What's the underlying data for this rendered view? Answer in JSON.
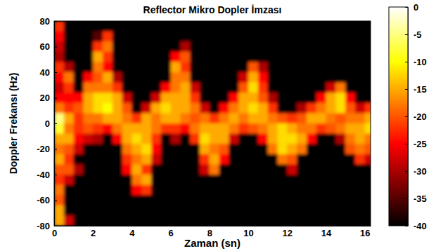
{
  "chart_data": {
    "type": "heatmap",
    "title": "Reflector Mikro Dopler İmzası",
    "x_label": "Zaman (sn)",
    "y_label": "Doppler Frekansı (Hz)",
    "xlim": [
      0,
      16.3
    ],
    "xticks": [
      0,
      2,
      4,
      6,
      8,
      10,
      12,
      14,
      16
    ],
    "ylim": [
      -80,
      80
    ],
    "yticks": [
      -80,
      -60,
      -40,
      -20,
      0,
      20,
      40,
      60,
      80
    ],
    "x": [
      0.25,
      0.75,
      1.25,
      1.75,
      2.25,
      2.75,
      3.25,
      3.75,
      4.25,
      4.75,
      5.25,
      5.75,
      6.25,
      6.75,
      7.25,
      7.75,
      8.25,
      8.75,
      9.25,
      9.75,
      10.25,
      10.75,
      11.25,
      11.75,
      12.25,
      12.75,
      13.25,
      13.75,
      14.25,
      14.75,
      15.25,
      15.75,
      16.25
    ],
    "y": [
      76,
      68,
      60,
      52,
      44,
      36,
      28,
      20,
      12,
      4,
      -4,
      -12,
      -20,
      -28,
      -36,
      -44,
      -52,
      -60,
      -68,
      -76
    ],
    "z": [
      [
        -22,
        -40,
        -40,
        -40,
        -40,
        -40,
        -40,
        -40,
        -40,
        -40,
        -40,
        -40,
        -40,
        -40,
        -40,
        -40,
        -40,
        -40,
        -40,
        -40,
        -40,
        -40,
        -40,
        -40,
        -40,
        -40,
        -40,
        -40,
        -40,
        -40,
        -40,
        -40,
        -40
      ],
      [
        -25,
        -40,
        -40,
        -40,
        -35,
        -22,
        -40,
        -40,
        -40,
        -40,
        -40,
        -40,
        -40,
        -40,
        -40,
        -40,
        -40,
        -40,
        -40,
        -40,
        -40,
        -40,
        -40,
        -40,
        -40,
        -40,
        -40,
        -40,
        -40,
        -40,
        -40,
        -40,
        -40
      ],
      [
        -28,
        -40,
        -40,
        -40,
        -22,
        -18,
        -40,
        -40,
        -40,
        -40,
        -40,
        -40,
        -40,
        -30,
        -40,
        -40,
        -40,
        -40,
        -40,
        -40,
        -40,
        -40,
        -40,
        -40,
        -40,
        -40,
        -40,
        -40,
        -40,
        -40,
        -40,
        -40,
        -40
      ],
      [
        -30,
        -40,
        -40,
        -40,
        -15,
        -22,
        -40,
        -40,
        -40,
        -40,
        -40,
        -40,
        -25,
        -20,
        -40,
        -40,
        -40,
        -40,
        -40,
        -40,
        -40,
        -40,
        -40,
        -40,
        -40,
        -40,
        -40,
        -40,
        -40,
        -40,
        -40,
        -40,
        -40
      ],
      [
        -22,
        -30,
        -40,
        -40,
        -18,
        -25,
        -40,
        -40,
        -40,
        -40,
        -40,
        -40,
        -15,
        -22,
        -40,
        -40,
        -40,
        -40,
        -40,
        -40,
        -20,
        -30,
        -40,
        -40,
        -40,
        -40,
        -40,
        -40,
        -40,
        -40,
        -40,
        -40,
        -40
      ],
      [
        -25,
        -18,
        -40,
        -25,
        -20,
        -15,
        -30,
        -40,
        -40,
        -40,
        -40,
        -40,
        -18,
        -18,
        -40,
        -40,
        -40,
        -40,
        -40,
        -28,
        -15,
        -25,
        -40,
        -40,
        -40,
        -40,
        -40,
        -40,
        -40,
        -40,
        -40,
        -40,
        -40
      ],
      [
        -28,
        -22,
        -40,
        -18,
        -18,
        -18,
        -22,
        -40,
        -40,
        -40,
        -40,
        -25,
        -18,
        -15,
        -28,
        -40,
        -40,
        -40,
        -40,
        -20,
        -12,
        -22,
        -40,
        -40,
        -40,
        -40,
        -40,
        -40,
        -28,
        -18,
        -40,
        -40,
        -40
      ],
      [
        -25,
        -25,
        -25,
        -15,
        -12,
        -12,
        -15,
        -28,
        -40,
        -40,
        -28,
        -15,
        -15,
        -15,
        -22,
        -40,
        -40,
        -40,
        -25,
        -15,
        -15,
        -20,
        -30,
        -40,
        -40,
        -40,
        -40,
        -25,
        -15,
        -12,
        -25,
        -40,
        -40
      ],
      [
        -18,
        -22,
        -20,
        -15,
        -12,
        -10,
        -15,
        -20,
        -40,
        -28,
        -15,
        -12,
        -15,
        -15,
        -18,
        -28,
        -40,
        -25,
        -18,
        -15,
        -12,
        -15,
        -22,
        -40,
        -40,
        -30,
        -22,
        -18,
        -15,
        -12,
        -20,
        -28,
        -22
      ],
      [
        -5,
        -15,
        -22,
        -18,
        -18,
        -15,
        -15,
        -18,
        -22,
        -15,
        -18,
        -15,
        -15,
        -18,
        -20,
        -18,
        -22,
        -18,
        -15,
        -18,
        -15,
        -15,
        -18,
        -20,
        -22,
        -20,
        -15,
        -15,
        -18,
        -20,
        -18,
        -18,
        -15
      ],
      [
        -8,
        -18,
        -22,
        -20,
        -22,
        -25,
        -18,
        -15,
        -15,
        -15,
        -18,
        -22,
        -22,
        -25,
        -18,
        -15,
        -15,
        -15,
        -18,
        -22,
        -20,
        -18,
        -15,
        -12,
        -15,
        -18,
        -18,
        -22,
        -20,
        -18,
        -15,
        -15,
        -12
      ],
      [
        -15,
        -15,
        -25,
        -28,
        -30,
        -40,
        -25,
        -15,
        -12,
        -15,
        -22,
        -40,
        -30,
        -40,
        -22,
        -12,
        -15,
        -15,
        -28,
        -40,
        -40,
        -25,
        -15,
        -12,
        -12,
        -15,
        -25,
        -40,
        -40,
        -30,
        -18,
        -15,
        -18
      ],
      [
        -18,
        -20,
        -28,
        -40,
        -40,
        -40,
        -40,
        -18,
        -15,
        -12,
        -25,
        -40,
        -40,
        -40,
        -40,
        -15,
        -18,
        -20,
        -40,
        -40,
        -40,
        -40,
        -18,
        -12,
        -15,
        -18,
        -40,
        -40,
        -40,
        -40,
        -20,
        -18,
        -20
      ],
      [
        -15,
        -22,
        -40,
        -40,
        -40,
        -40,
        -40,
        -22,
        -18,
        -15,
        -28,
        -40,
        -40,
        -40,
        -40,
        -22,
        -15,
        -25,
        -40,
        -40,
        -40,
        -40,
        -40,
        -18,
        -20,
        -40,
        -40,
        -40,
        -40,
        -40,
        -40,
        -22,
        -28
      ],
      [
        -20,
        -20,
        -30,
        -40,
        -40,
        -40,
        -40,
        -25,
        -15,
        -22,
        -40,
        -40,
        -40,
        -40,
        -40,
        -28,
        -18,
        -40,
        -40,
        -40,
        -40,
        -40,
        -40,
        -40,
        -28,
        -40,
        -40,
        -40,
        -40,
        -40,
        -40,
        -40,
        -40
      ],
      [
        -22,
        -28,
        -40,
        -40,
        -40,
        -40,
        -40,
        -40,
        -18,
        -15,
        -40,
        -40,
        -40,
        -40,
        -40,
        -40,
        -40,
        -40,
        -40,
        -40,
        -40,
        -40,
        -40,
        -40,
        -40,
        -40,
        -40,
        -40,
        -40,
        -40,
        -40,
        -40,
        -40
      ],
      [
        -18,
        -40,
        -40,
        -40,
        -40,
        -40,
        -40,
        -40,
        -25,
        -22,
        -40,
        -40,
        -40,
        -40,
        -40,
        -40,
        -40,
        -40,
        -40,
        -40,
        -40,
        -40,
        -40,
        -40,
        -40,
        -40,
        -40,
        -40,
        -40,
        -40,
        -40,
        -40,
        -40
      ],
      [
        -20,
        -40,
        -40,
        -40,
        -40,
        -40,
        -40,
        -40,
        -40,
        -40,
        -40,
        -40,
        -40,
        -40,
        -40,
        -40,
        -40,
        -40,
        -40,
        -40,
        -40,
        -40,
        -40,
        -40,
        -40,
        -40,
        -40,
        -40,
        -40,
        -40,
        -40,
        -40,
        -40
      ],
      [
        -15,
        -40,
        -40,
        -40,
        -40,
        -40,
        -40,
        -40,
        -40,
        -40,
        -40,
        -40,
        -40,
        -40,
        -40,
        -40,
        -40,
        -40,
        -40,
        -40,
        -40,
        -40,
        -40,
        -40,
        -40,
        -40,
        -40,
        -40,
        -40,
        -40,
        -40,
        -40,
        -40
      ],
      [
        -15,
        -28,
        -40,
        -40,
        -40,
        -40,
        -40,
        -40,
        -40,
        -40,
        -40,
        -40,
        -40,
        -40,
        -40,
        -40,
        -40,
        -40,
        -40,
        -40,
        -40,
        -40,
        -40,
        -40,
        -40,
        -40,
        -40,
        -40,
        -40,
        -40,
        -40,
        -40,
        -40
      ]
    ],
    "colorbar": {
      "range": [
        -40,
        0
      ],
      "ticks": [
        0,
        -5,
        -10,
        -15,
        -20,
        -25,
        -30,
        -35,
        -40
      ]
    }
  }
}
